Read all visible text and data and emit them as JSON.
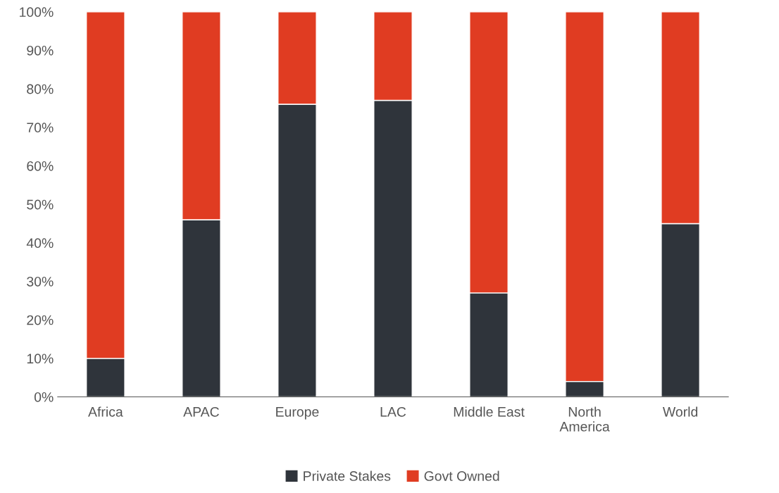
{
  "chart_data": {
    "type": "bar",
    "stacked": true,
    "categories": [
      "Africa",
      "APAC",
      "Europe",
      "LAC",
      "Middle East",
      "North\nAmerica",
      "World"
    ],
    "series": [
      {
        "name": "Private Stakes",
        "color": "#2f343b",
        "values": [
          10,
          46,
          76,
          77,
          27,
          4,
          45
        ]
      },
      {
        "name": "Govt Owned",
        "color": "#e03c22",
        "values": [
          90,
          54,
          24,
          23,
          73,
          96,
          55
        ]
      }
    ],
    "ylim": [
      0,
      100
    ],
    "yticks": [
      {
        "value": 0,
        "label": "0%"
      },
      {
        "value": 10,
        "label": "10%"
      },
      {
        "value": 20,
        "label": "20%"
      },
      {
        "value": 30,
        "label": "30%"
      },
      {
        "value": 40,
        "label": "40%"
      },
      {
        "value": 50,
        "label": "50%"
      },
      {
        "value": 60,
        "label": "60%"
      },
      {
        "value": 70,
        "label": "70%"
      },
      {
        "value": 80,
        "label": "80%"
      },
      {
        "value": 90,
        "label": "90%"
      },
      {
        "value": 100,
        "label": "100%"
      }
    ],
    "grid": false,
    "legend": "bottom"
  }
}
